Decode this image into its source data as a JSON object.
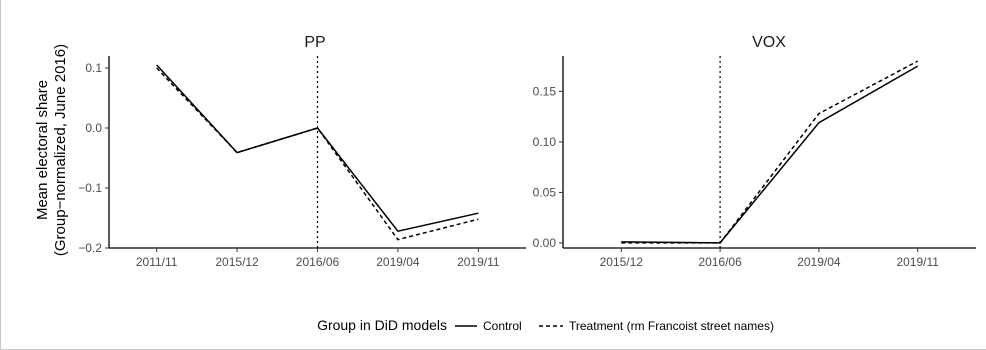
{
  "y_axis_title_line1": "Mean electoral share",
  "y_axis_title_line2": "(Group−normalized, June 2016)",
  "chart_data": [
    {
      "type": "line",
      "title": "PP",
      "x": [
        "2011/11",
        "2015/12",
        "2016/06",
        "2019/04",
        "2019/11"
      ],
      "ylim": [
        -0.2,
        0.12
      ],
      "yticks": [
        0.1,
        0.0,
        -0.1,
        -0.2
      ],
      "ytick_labels": [
        "0.1",
        "0.0",
        "−0.1",
        "−0.2"
      ],
      "event_x": "2016/06",
      "series": [
        {
          "name": "Control",
          "style": "solid",
          "values": [
            0.105,
            -0.041,
            0.0,
            -0.172,
            -0.142
          ]
        },
        {
          "name": "Treatment (rm Francoist street names)",
          "style": "dashed",
          "values": [
            0.1,
            -0.041,
            0.0,
            -0.186,
            -0.152
          ]
        }
      ]
    },
    {
      "type": "line",
      "title": "VOX",
      "x": [
        "2015/12",
        "2016/06",
        "2019/04",
        "2019/11"
      ],
      "ylim": [
        -0.005,
        0.185
      ],
      "yticks": [
        0.15,
        0.1,
        0.05,
        0.0
      ],
      "ytick_labels": [
        "0.15",
        "0.10",
        "0.05",
        "0.00"
      ],
      "event_x": "2016/06",
      "series": [
        {
          "name": "Control",
          "style": "solid",
          "values": [
            0.001,
            0.0,
            0.119,
            0.175
          ]
        },
        {
          "name": "Treatment (rm Francoist street names)",
          "style": "dashed",
          "values": [
            0.0,
            0.0,
            0.128,
            0.18
          ]
        }
      ]
    }
  ],
  "legend": {
    "title": "Group in DiD models",
    "items": [
      {
        "label": "Control",
        "style": "solid"
      },
      {
        "label": "Treatment (rm Francoist street names)",
        "style": "dashed"
      }
    ]
  }
}
